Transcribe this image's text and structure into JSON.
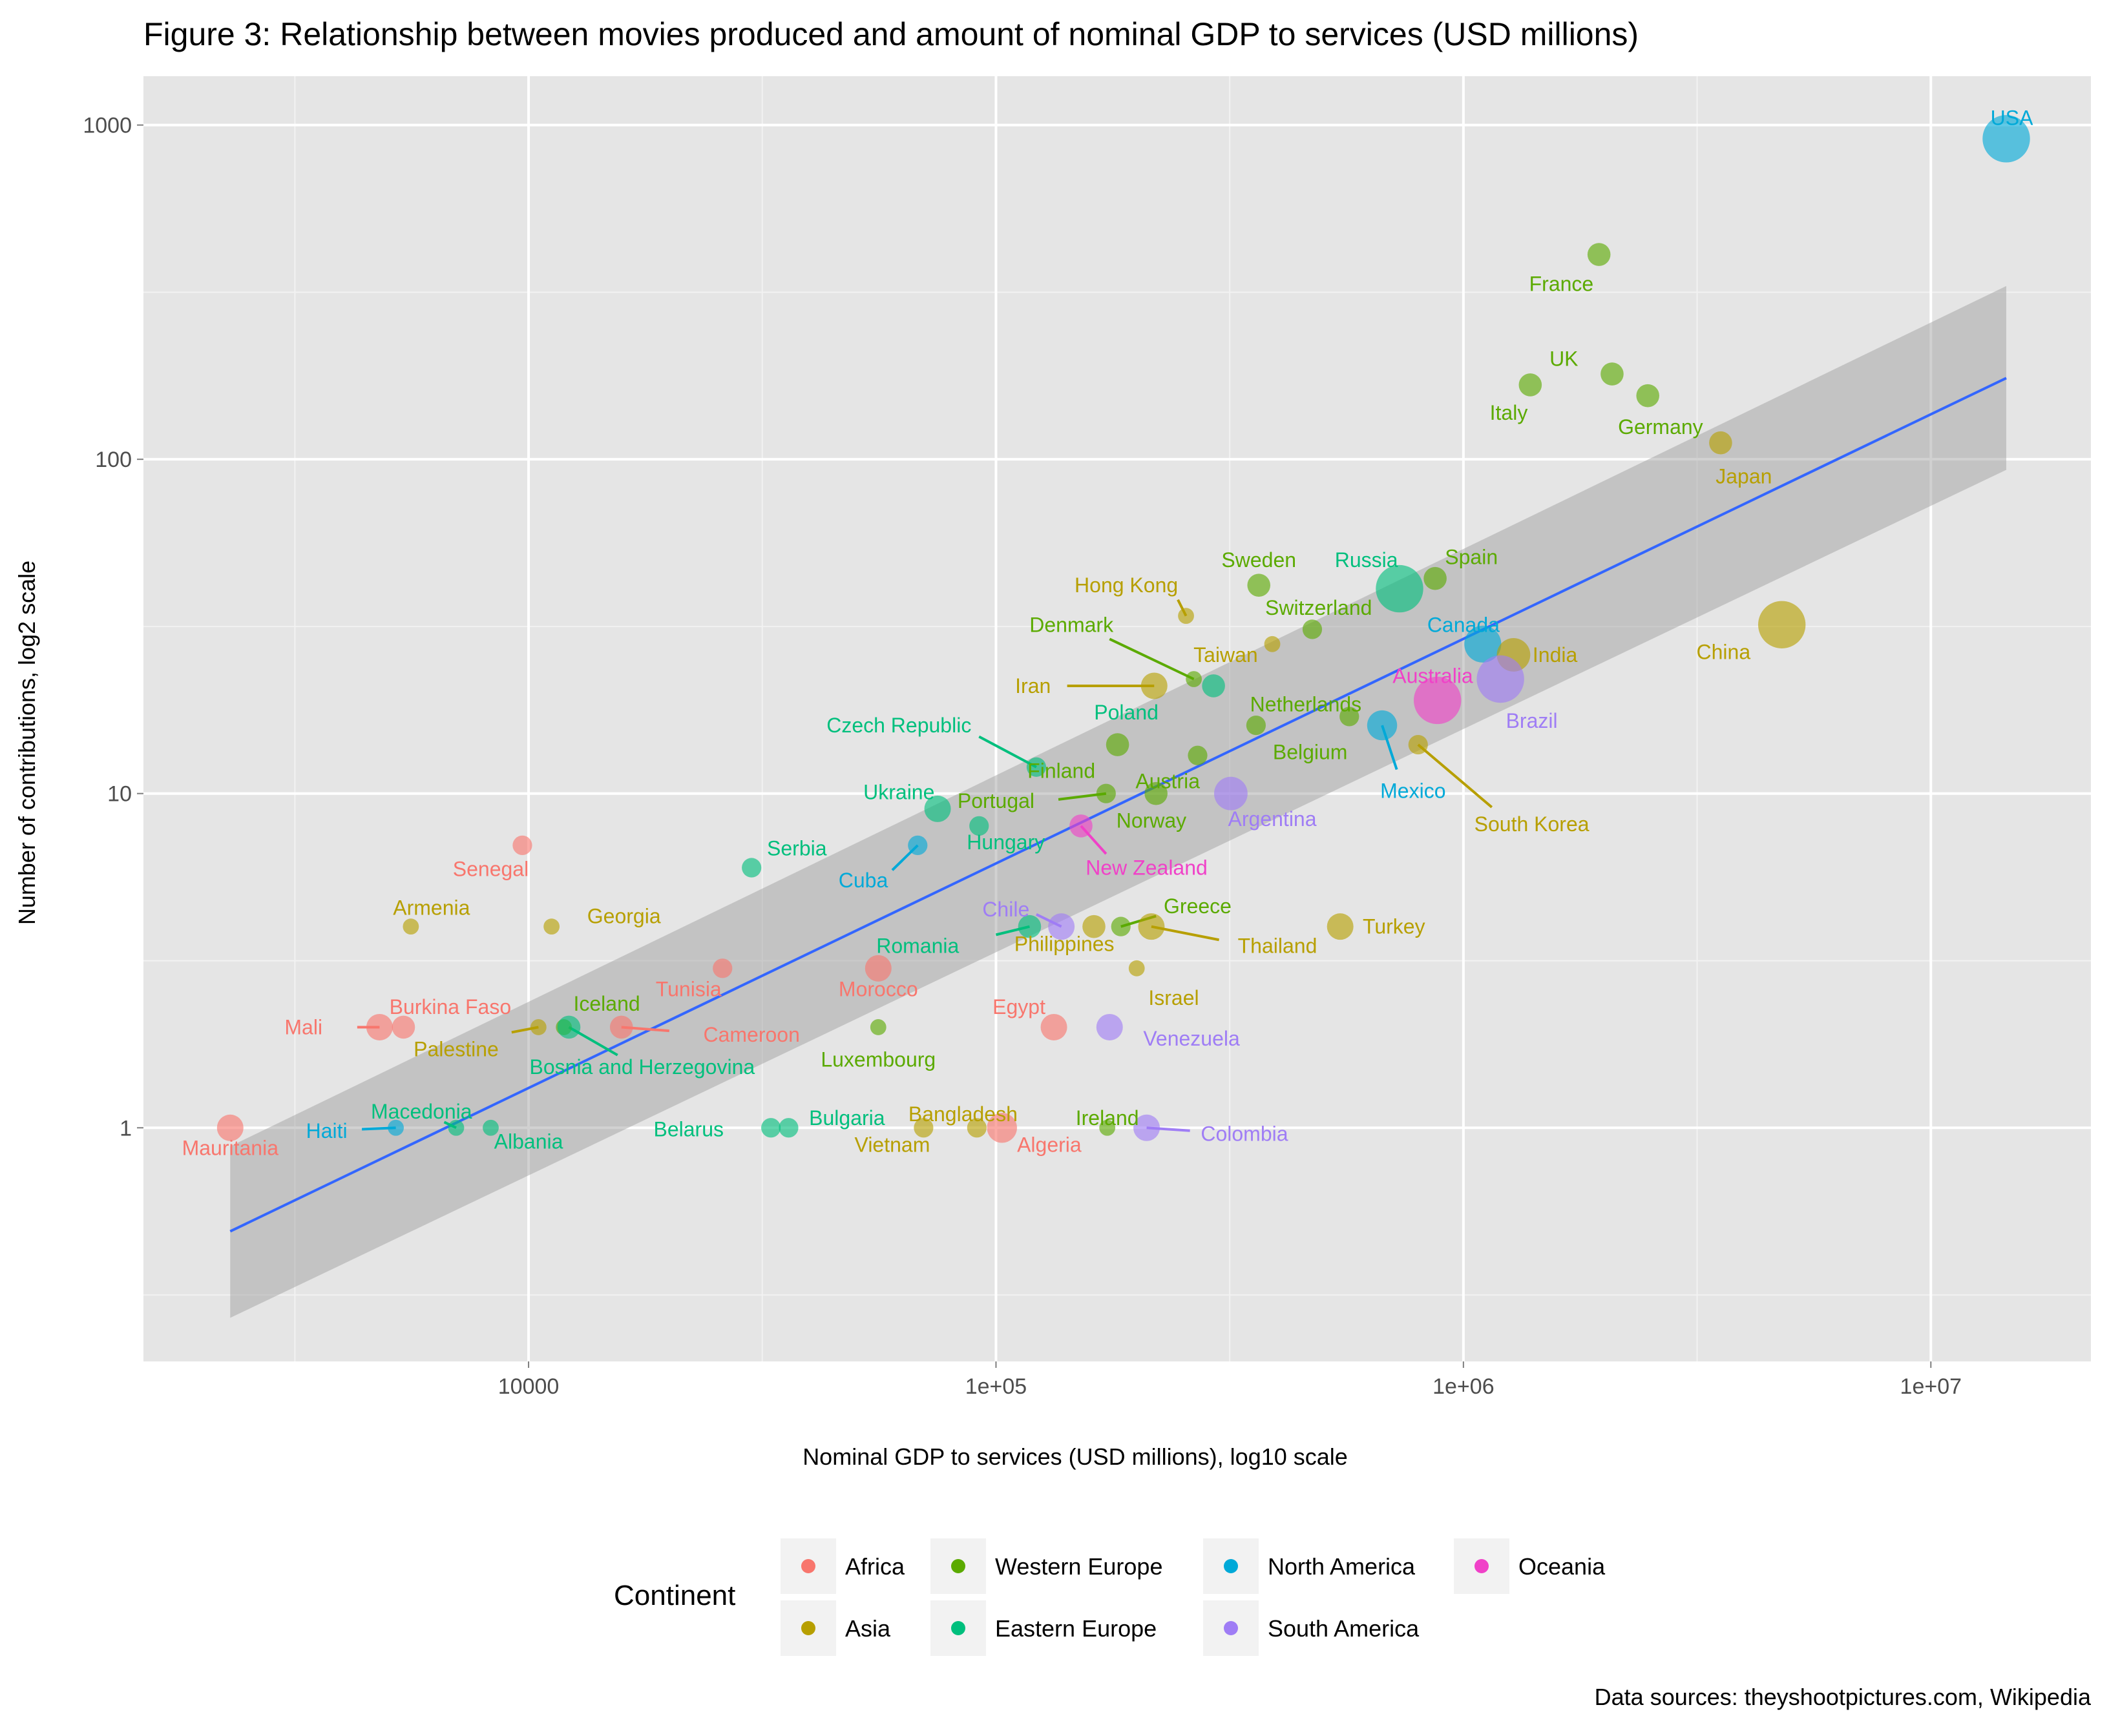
{
  "chart_data": {
    "type": "scatter",
    "title": "Figure 3: Relationship between movies produced and amount of nominal GDP to services (USD millions)",
    "xlabel": "Nominal GDP to services (USD millions), log10 scale",
    "ylabel": "Number of contributions, log2 scale",
    "x_scale": "log10",
    "y_scale": "log2",
    "xlim": [
      1500,
      22000000
    ],
    "ylim": [
      0.2,
      1400
    ],
    "x_ticks": [
      {
        "value": 10000,
        "label": "10000"
      },
      {
        "value": 100000,
        "label": "1e+05"
      },
      {
        "value": 1000000,
        "label": "1e+06"
      },
      {
        "value": 10000000,
        "label": "1e+07"
      }
    ],
    "y_ticks": [
      {
        "value": 1,
        "label": "1"
      },
      {
        "value": 10,
        "label": "10"
      },
      {
        "value": 100,
        "label": "100"
      },
      {
        "value": 1000,
        "label": "1000"
      }
    ],
    "grid": true,
    "legend": {
      "title": "Continent",
      "position": "bottom",
      "items": [
        {
          "key": "Africa",
          "label": "Africa",
          "color": "#F8766D"
        },
        {
          "key": "Asia",
          "label": "Asia",
          "color": "#B79F00"
        },
        {
          "key": "Western Europe",
          "label": "Western Europe",
          "color": "#5BAA00"
        },
        {
          "key": "Eastern Europe",
          "label": "Eastern Europe",
          "color": "#00BF7D"
        },
        {
          "key": "North America",
          "label": "North America",
          "color": "#00A9D8"
        },
        {
          "key": "South America",
          "label": "South America",
          "color": "#9F7DF5"
        },
        {
          "key": "Oceania",
          "label": "Oceania",
          "color": "#F041C8"
        }
      ]
    },
    "trend_line": {
      "x": [
        2300,
        14500000
      ],
      "y": [
        0.49,
        175
      ]
    },
    "confidence_band": {
      "x": [
        2300,
        14500000
      ],
      "lower": [
        0.27,
        93
      ],
      "upper": [
        0.88,
        330
      ]
    },
    "points": [
      {
        "country": "USA",
        "continent": "North America",
        "x": 14500000,
        "y": 910,
        "size": 11,
        "label_dx": 0,
        "label_dy": -0.5,
        "lx": 14900000,
        "ly": 1050
      },
      {
        "country": "France",
        "continent": "Western Europe",
        "x": 1950000,
        "y": 410,
        "size": 4,
        "lx": 1620000,
        "ly": 335
      },
      {
        "country": "UK",
        "continent": "Western Europe",
        "x": 2080000,
        "y": 180,
        "size": 4,
        "lx": 1640000,
        "ly": 200
      },
      {
        "country": "Italy",
        "continent": "Western Europe",
        "x": 1390000,
        "y": 167,
        "size": 4,
        "lx": 1250000,
        "ly": 138
      },
      {
        "country": "Germany",
        "continent": "Western Europe",
        "x": 2480000,
        "y": 155,
        "size": 4,
        "lx": 2640000,
        "ly": 125
      },
      {
        "country": "Japan",
        "continent": "Asia",
        "x": 3550000,
        "y": 112,
        "size": 4,
        "lx": 3980000,
        "ly": 89
      },
      {
        "country": "Sweden",
        "continent": "Western Europe",
        "x": 365000,
        "y": 42,
        "size": 4,
        "lx": 365000,
        "ly": 50
      },
      {
        "country": "Spain",
        "continent": "Western Europe",
        "x": 870000,
        "y": 44,
        "size": 4,
        "lx": 1040000,
        "ly": 51
      },
      {
        "country": "Russia",
        "continent": "Eastern Europe",
        "x": 730000,
        "y": 41,
        "size": 11,
        "lx": 620000,
        "ly": 50
      },
      {
        "country": "Hong Kong",
        "continent": "Asia",
        "x": 255000,
        "y": 34,
        "size": 2,
        "lx": 190000,
        "ly": 42,
        "seg": [
          245000,
          38
        ]
      },
      {
        "country": "Switzerland",
        "continent": "Western Europe",
        "x": 475000,
        "y": 31,
        "size": 3,
        "lx": 490000,
        "ly": 36
      },
      {
        "country": "Canada",
        "continent": "North America",
        "x": 1100000,
        "y": 28,
        "size": 8,
        "lx": 1000000,
        "ly": 32
      },
      {
        "country": "Denmark",
        "continent": "Western Europe",
        "x": 265000,
        "y": 22,
        "size": 2,
        "lx": 145000,
        "ly": 32,
        "seg": [
          175000,
          29
        ]
      },
      {
        "country": "Taiwan",
        "continent": "Asia",
        "x": 390000,
        "y": 28,
        "size": 2,
        "lx": 310000,
        "ly": 26
      },
      {
        "country": "India",
        "continent": "Asia",
        "x": 1280000,
        "y": 26,
        "size": 7,
        "lx": 1570000,
        "ly": 26
      },
      {
        "country": "China",
        "continent": "Asia",
        "x": 4800000,
        "y": 32,
        "size": 11,
        "lx": 3600000,
        "ly": 26.5
      },
      {
        "country": "Iran",
        "continent": "Asia",
        "x": 218000,
        "y": 21,
        "size": 5,
        "lx": 120000,
        "ly": 21,
        "seg": [
          142000,
          21
        ]
      },
      {
        "country": "Poland",
        "continent": "Eastern Europe",
        "x": 292000,
        "y": 21,
        "size": 4,
        "lx": 190000,
        "ly": 17.5
      },
      {
        "country": "Australia",
        "continent": "Oceania",
        "x": 880000,
        "y": 19,
        "size": 11,
        "lx": 860000,
        "ly": 22.5
      },
      {
        "country": "Brazil",
        "continent": "South America",
        "x": 1200000,
        "y": 22,
        "size": 11,
        "lx": 1400000,
        "ly": 16.5
      },
      {
        "country": "Netherlands",
        "continent": "Western Europe",
        "x": 570000,
        "y": 17,
        "size": 3,
        "lx": 460000,
        "ly": 18.5
      },
      {
        "country": "Mexico",
        "continent": "North America",
        "x": 670000,
        "y": 16,
        "size": 6,
        "lx": 780000,
        "ly": 10.2,
        "seg": [
          720000,
          11.8
        ]
      },
      {
        "country": "Belgium",
        "continent": "Western Europe",
        "x": 360000,
        "y": 16,
        "size": 3,
        "lx": 470000,
        "ly": 13.3
      },
      {
        "country": "South Korea",
        "continent": "Asia",
        "x": 800000,
        "y": 14,
        "size": 3,
        "lx": 1400000,
        "ly": 8.1,
        "seg": [
          1150000,
          9.1
        ]
      },
      {
        "country": "Czech Republic",
        "continent": "Eastern Europe",
        "x": 122000,
        "y": 12,
        "size": 3,
        "lx": 62000,
        "ly": 16,
        "seg": [
          92000,
          14.8
        ]
      },
      {
        "country": "Finland",
        "continent": "Western Europe",
        "x": 182000,
        "y": 14,
        "size": 4,
        "lx": 138000,
        "ly": 11.7
      },
      {
        "country": "Austria",
        "continent": "Western Europe",
        "x": 270000,
        "y": 13,
        "size": 3,
        "lx": 233000,
        "ly": 10.9
      },
      {
        "country": "Portugal",
        "continent": "Western Europe",
        "x": 172000,
        "y": 10,
        "size": 3,
        "lx": 100000,
        "ly": 9.5,
        "seg": [
          136000,
          9.6
        ]
      },
      {
        "country": "Norway",
        "continent": "Western Europe",
        "x": 220000,
        "y": 10,
        "size": 4,
        "lx": 215000,
        "ly": 8.3
      },
      {
        "country": "Argentina",
        "continent": "South America",
        "x": 318000,
        "y": 10,
        "size": 7,
        "lx": 390000,
        "ly": 8.4
      },
      {
        "country": "Ukraine",
        "continent": "Eastern Europe",
        "x": 75000,
        "y": 9,
        "size": 5,
        "lx": 62000,
        "ly": 10.1
      },
      {
        "country": "Hungary",
        "continent": "Eastern Europe",
        "x": 92000,
        "y": 8,
        "size": 3,
        "lx": 105000,
        "ly": 7.15
      },
      {
        "country": "New Zealand",
        "continent": "Oceania",
        "x": 152000,
        "y": 8,
        "size": 4,
        "lx": 210000,
        "ly": 6.0,
        "seg": [
          172000,
          6.6
        ]
      },
      {
        "country": "Cuba",
        "continent": "North America",
        "x": 68000,
        "y": 7,
        "size": 3,
        "lx": 52000,
        "ly": 5.5,
        "seg": [
          60000,
          5.9
        ]
      },
      {
        "country": "Senegal",
        "continent": "Africa",
        "x": 9700,
        "y": 7,
        "size": 3,
        "lx": 8300,
        "ly": 5.95
      },
      {
        "country": "Serbia",
        "continent": "Eastern Europe",
        "x": 30000,
        "y": 6,
        "size": 3,
        "lx": 37500,
        "ly": 6.85
      },
      {
        "country": "Armenia",
        "continent": "Asia",
        "x": 5600,
        "y": 4,
        "size": 2,
        "lx": 6200,
        "ly": 4.55
      },
      {
        "country": "Georgia",
        "continent": "Asia",
        "x": 11200,
        "y": 4,
        "size": 2,
        "lx": 16000,
        "ly": 4.3
      },
      {
        "country": "Chile",
        "continent": "South America",
        "x": 138000,
        "y": 4,
        "size": 5,
        "lx": 105000,
        "ly": 4.5,
        "seg": [
          122000,
          4.35
        ]
      },
      {
        "country": "Romania",
        "continent": "Eastern Europe",
        "x": 118000,
        "y": 4,
        "size": 4,
        "lx": 68000,
        "ly": 3.5,
        "seg": [
          100000,
          3.78
        ]
      },
      {
        "country": "Philippines",
        "continent": "Asia",
        "x": 162000,
        "y": 4,
        "size": 4,
        "lx": 140000,
        "ly": 3.55
      },
      {
        "country": "Greece",
        "continent": "Western Europe",
        "x": 185000,
        "y": 4,
        "size": 3,
        "lx": 270000,
        "ly": 4.6,
        "seg": [
          220000,
          4.3
        ]
      },
      {
        "country": "Thailand",
        "continent": "Asia",
        "x": 215000,
        "y": 4,
        "size": 5,
        "lx": 400000,
        "ly": 3.5,
        "seg": [
          300000,
          3.65
        ]
      },
      {
        "country": "Turkey",
        "continent": "Asia",
        "x": 545000,
        "y": 4,
        "size": 5,
        "lx": 710000,
        "ly": 4.0
      },
      {
        "country": "Israel",
        "continent": "Asia",
        "x": 200000,
        "y": 3,
        "size": 2,
        "lx": 240000,
        "ly": 2.45
      },
      {
        "country": "Tunisia",
        "continent": "Africa",
        "x": 26000,
        "y": 3,
        "size": 3,
        "lx": 22000,
        "ly": 2.6
      },
      {
        "country": "Morocco",
        "continent": "Africa",
        "x": 56000,
        "y": 3,
        "size": 5,
        "lx": 56000,
        "ly": 2.6
      },
      {
        "country": "Egypt",
        "continent": "Africa",
        "x": 133000,
        "y": 2,
        "size": 5,
        "lx": 112000,
        "ly": 2.3
      },
      {
        "country": "Venezuela",
        "continent": "South America",
        "x": 175000,
        "y": 2,
        "size": 5,
        "lx": 262000,
        "ly": 1.85
      },
      {
        "country": "Mali",
        "continent": "Africa",
        "x": 4800,
        "y": 2,
        "size": 5,
        "lx": 3300,
        "ly": 2.0,
        "seg": [
          4300,
          2.0
        ]
      },
      {
        "country": "Burkina Faso",
        "continent": "Africa",
        "x": 5400,
        "y": 2,
        "size": 4,
        "lx": 6800,
        "ly": 2.3
      },
      {
        "country": "Palestine",
        "continent": "Asia",
        "x": 10500,
        "y": 2,
        "size": 2,
        "lx": 7000,
        "ly": 1.72,
        "seg": [
          9200,
          1.93
        ]
      },
      {
        "country": "Iceland",
        "continent": "Western Europe",
        "x": 11900,
        "y": 2,
        "size": 2,
        "lx": 14700,
        "ly": 2.35
      },
      {
        "country": "Bosnia and Herzegovina",
        "continent": "Eastern Europe",
        "x": 12200,
        "y": 2,
        "size": 4,
        "lx": 17500,
        "ly": 1.52,
        "seg": [
          15500,
          1.65
        ]
      },
      {
        "country": "Cameroon",
        "continent": "Africa",
        "x": 15800,
        "y": 2,
        "size": 4,
        "lx": 30000,
        "ly": 1.9,
        "seg": [
          20000,
          1.95
        ]
      },
      {
        "country": "Luxembourg",
        "continent": "Western Europe",
        "x": 56000,
        "y": 2,
        "size": 2,
        "lx": 56000,
        "ly": 1.6
      },
      {
        "country": "Mauritania",
        "continent": "Africa",
        "x": 2300,
        "y": 1,
        "size": 5,
        "lx": 2300,
        "ly": 0.87
      },
      {
        "country": "Haiti",
        "continent": "North America",
        "x": 5200,
        "y": 1,
        "size": 2,
        "lx": 3700,
        "ly": 0.98,
        "seg": [
          4400,
          0.99
        ]
      },
      {
        "country": "Macedonia",
        "continent": "Eastern Europe",
        "x": 7000,
        "y": 1,
        "size": 2,
        "lx": 5900,
        "ly": 1.12,
        "seg": [
          6600,
          1.04
        ]
      },
      {
        "country": "Albania",
        "continent": "Eastern Europe",
        "x": 8300,
        "y": 1,
        "size": 2,
        "lx": 10000,
        "ly": 0.91
      },
      {
        "country": "Belarus",
        "continent": "Eastern Europe",
        "x": 33000,
        "y": 1,
        "size": 3,
        "lx": 22000,
        "ly": 0.99
      },
      {
        "country": "Bulgaria",
        "continent": "Eastern Europe",
        "x": 36000,
        "y": 1,
        "size": 3,
        "lx": 48000,
        "ly": 1.07
      },
      {
        "country": "Vietnam",
        "continent": "Asia",
        "x": 70000,
        "y": 1,
        "size": 3,
        "lx": 60000,
        "ly": 0.89
      },
      {
        "country": "Bangladesh",
        "continent": "Asia",
        "x": 91000,
        "y": 1,
        "size": 3,
        "lx": 85000,
        "ly": 1.1
      },
      {
        "country": "Algeria",
        "continent": "Africa",
        "x": 103000,
        "y": 1,
        "size": 6,
        "lx": 130000,
        "ly": 0.89
      },
      {
        "country": "Ireland",
        "continent": "Western Europe",
        "x": 173000,
        "y": 1,
        "size": 2,
        "lx": 173000,
        "ly": 1.07
      },
      {
        "country": "Colombia",
        "continent": "South America",
        "x": 210000,
        "y": 1,
        "size": 5,
        "lx": 340000,
        "ly": 0.96,
        "seg": [
          260000,
          0.98
        ]
      }
    ]
  },
  "caption": "Data sources: theyshootpictures.com, Wikipedia"
}
